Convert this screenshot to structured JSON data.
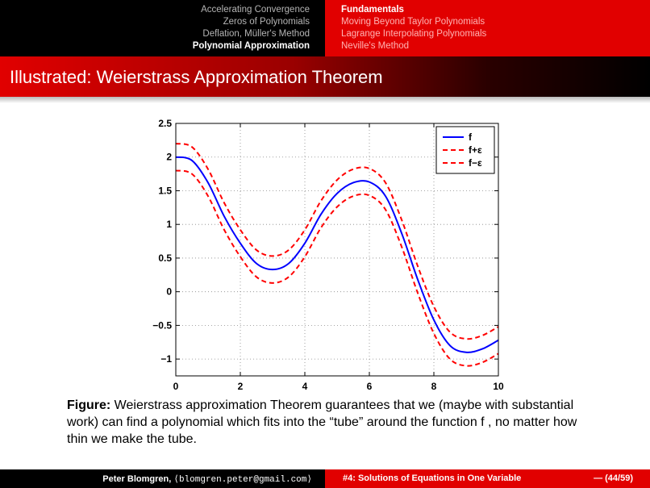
{
  "nav": {
    "left": [
      {
        "label": "Accelerating Convergence",
        "active": false
      },
      {
        "label": "Zeros of Polynomials",
        "active": false
      },
      {
        "label": "Deflation, Müller's Method",
        "active": false
      },
      {
        "label": "Polynomial Approximation",
        "active": true
      }
    ],
    "right": [
      {
        "label": "Fundamentals",
        "active": true
      },
      {
        "label": "Moving Beyond Taylor Polynomials",
        "active": false
      },
      {
        "label": "Lagrange Interpolating Polynomials",
        "active": false
      },
      {
        "label": "Neville's Method",
        "active": false
      }
    ]
  },
  "frame_title": "Illustrated: Weierstrass Approximation Theorem",
  "chart_data": {
    "type": "line",
    "title": "",
    "xlabel": "",
    "ylabel": "",
    "xlim": [
      0,
      10
    ],
    "ylim": [
      -1.25,
      2.5
    ],
    "xticks": [
      "0",
      "2",
      "4",
      "6",
      "8",
      "10"
    ],
    "yticks": [
      "2.5",
      "2",
      "1.5",
      "1",
      "0.5",
      "0",
      "−0.5",
      "−1"
    ],
    "grid": true,
    "legend_position": "top-right",
    "series": [
      {
        "name": "f",
        "color": "#0000ff",
        "dash": "solid",
        "x": [
          0,
          0.5,
          1,
          1.5,
          2,
          2.5,
          3,
          3.5,
          4,
          4.5,
          5,
          5.5,
          6,
          6.5,
          7,
          7.5,
          8,
          8.5,
          9,
          9.5,
          10
        ],
        "y": [
          2.0,
          1.95,
          1.62,
          1.12,
          0.72,
          0.42,
          0.33,
          0.42,
          0.72,
          1.15,
          1.46,
          1.62,
          1.63,
          1.42,
          0.87,
          0.18,
          -0.42,
          -0.8,
          -0.9,
          -0.85,
          -0.72
        ]
      },
      {
        "name": "f+ε",
        "color": "#ff0000",
        "dash": "dashed",
        "x": [
          0,
          0.5,
          1,
          1.5,
          2,
          2.5,
          3,
          3.5,
          4,
          4.5,
          5,
          5.5,
          6,
          6.5,
          7,
          7.5,
          8,
          8.5,
          9,
          9.5,
          10
        ],
        "y": [
          2.2,
          2.15,
          1.82,
          1.32,
          0.92,
          0.62,
          0.53,
          0.62,
          0.92,
          1.35,
          1.66,
          1.82,
          1.83,
          1.62,
          1.07,
          0.38,
          -0.22,
          -0.6,
          -0.7,
          -0.65,
          -0.52
        ]
      },
      {
        "name": "f−ε",
        "color": "#ff0000",
        "dash": "dashed",
        "x": [
          0,
          0.5,
          1,
          1.5,
          2,
          2.5,
          3,
          3.5,
          4,
          4.5,
          5,
          5.5,
          6,
          6.5,
          7,
          7.5,
          8,
          8.5,
          9,
          9.5,
          10
        ],
        "y": [
          1.8,
          1.75,
          1.42,
          0.92,
          0.52,
          0.22,
          0.13,
          0.22,
          0.52,
          0.95,
          1.26,
          1.42,
          1.43,
          1.22,
          0.67,
          -0.02,
          -0.62,
          -1.0,
          -1.1,
          -1.05,
          -0.92
        ]
      }
    ]
  },
  "caption": {
    "label": "Figure:",
    "text": "Weierstrass approximation Theorem guarantees that we (maybe with substantial work) can find a polynomial which fits into the “tube” around the function f , no matter how thin we make the tube."
  },
  "footer": {
    "author": "Peter Blomgren,",
    "email": "⟨blomgren.peter@gmail.com⟩",
    "talk": "#4: Solutions of Equations in One Variable",
    "pages": "— (44/59)"
  }
}
